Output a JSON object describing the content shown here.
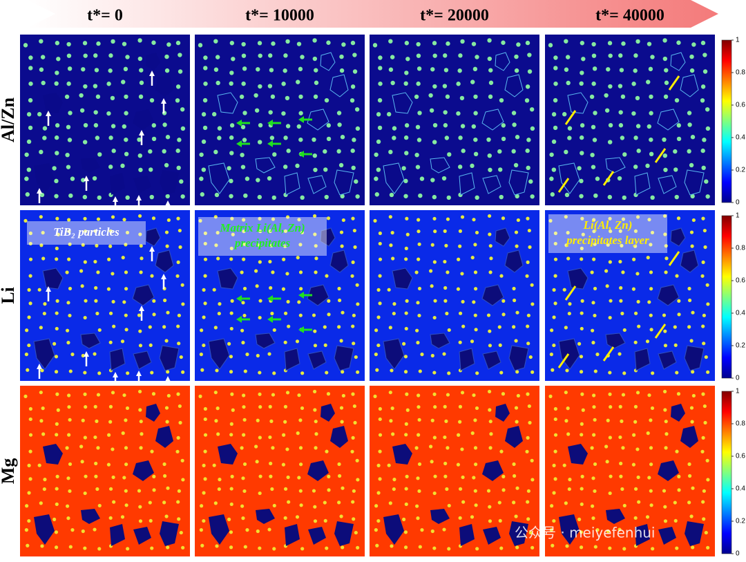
{
  "columns": [
    "t*= 0",
    "t*= 10000",
    "t*= 20000",
    "t*= 40000"
  ],
  "rows": [
    "Al/Zn",
    "Li",
    "Mg"
  ],
  "colorbar": {
    "ticks": [
      0,
      0.2,
      0.4,
      0.6,
      0.8,
      1
    ]
  },
  "annotations": [
    {
      "lines": [
        "TiB₂ particles"
      ]
    },
    {
      "lines": [
        "Matrix Li(Al, Zn)",
        "precipitates"
      ]
    },
    {
      "lines": [
        "Li(Al, Zn)",
        "precipitates layer"
      ]
    }
  ],
  "watermark": "公众号 · meiyefenhui"
}
